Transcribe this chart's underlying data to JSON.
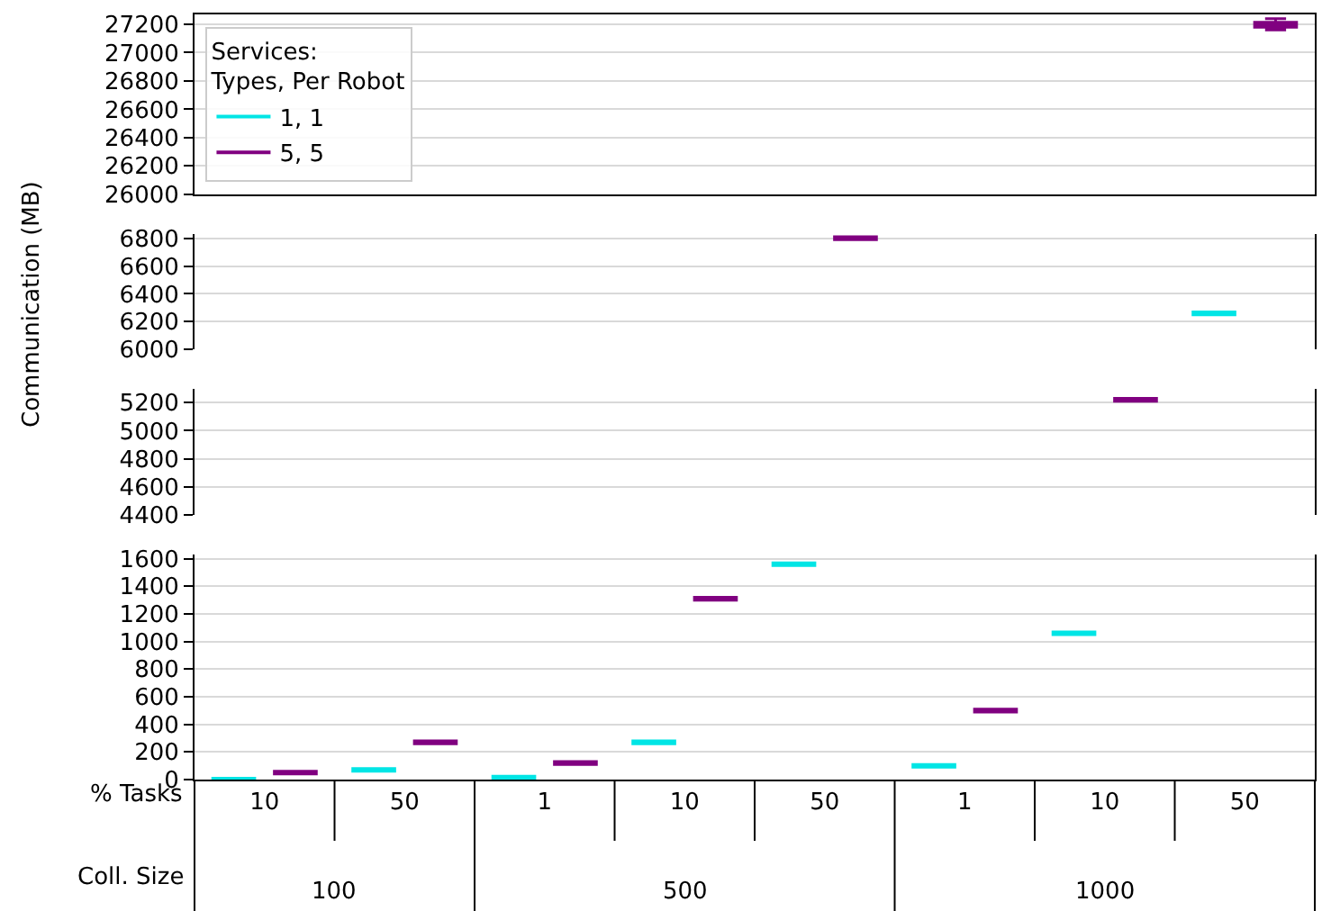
{
  "chart_data": [
    {
      "type": "box",
      "legend_title": "Services:\nTypes, Per Robot",
      "legend": "left",
      "grid": "y",
      "tick_labels": "y",
      "ylim": [
        26000,
        27270
      ],
      "yticks": [
        26000,
        26200,
        26400,
        26600,
        26800,
        27000,
        27200
      ],
      "categories": [
        "10",
        "50",
        "1",
        "10",
        "50",
        "1",
        "10",
        "50"
      ],
      "series": [
        {
          "name": "1, 1",
          "color": "#00e5e5",
          "boxes": [
            null,
            null,
            null,
            null,
            null,
            null,
            null,
            null
          ]
        },
        {
          "name": "5, 5",
          "color": "#800080",
          "boxes": [
            null,
            null,
            null,
            null,
            null,
            null,
            null,
            {
              "low": 27160,
              "q1": 27180,
              "median": 27200,
              "q3": 27215,
              "high": 27240
            }
          ]
        }
      ]
    },
    {
      "type": "box",
      "ylabel": "Communication (MB)",
      "grid": "y",
      "tick_labels": "y",
      "ylim": [
        6000,
        6830
      ],
      "yticks": [
        6000,
        6200,
        6400,
        6600,
        6800
      ],
      "categories": [
        "10",
        "50",
        "1",
        "10",
        "50",
        "1",
        "10",
        "50"
      ],
      "series": [
        {
          "color": "#00e5e5",
          "boxes": [
            null,
            null,
            null,
            null,
            null,
            null,
            null,
            {
              "low": 6250,
              "q1": 6250,
              "median": 6260,
              "q3": 6270,
              "high": 6270
            }
          ]
        },
        {
          "color": "#800080",
          "boxes": [
            null,
            null,
            null,
            null,
            {
              "low": 6790,
              "q1": 6790,
              "median": 6800,
              "q3": 6810,
              "high": 6810
            },
            null,
            null,
            null
          ]
        }
      ]
    },
    {
      "type": "box",
      "grid": "y",
      "tick_labels": "y",
      "ylim": [
        4400,
        5300
      ],
      "yticks": [
        4400,
        4600,
        4800,
        5000,
        5200
      ],
      "categories": [
        "10",
        "50",
        "1",
        "10",
        "50",
        "1",
        "10",
        "50"
      ],
      "series": [
        {
          "color": "#00e5e5",
          "boxes": [
            null,
            null,
            null,
            null,
            null,
            null,
            null,
            null
          ]
        },
        {
          "color": "#800080",
          "boxes": [
            null,
            null,
            null,
            null,
            null,
            null,
            {
              "low": 5210,
              "q1": 5210,
              "median": 5220,
              "q3": 5230,
              "high": 5230
            },
            null
          ]
        }
      ]
    },
    {
      "type": "box",
      "grid": "y",
      "ylim": [
        0,
        1630
      ],
      "yticks": [
        0,
        200,
        400,
        600,
        800,
        1000,
        1200,
        1400,
        1600
      ],
      "categories": [
        "10",
        "50",
        "1",
        "10",
        "50",
        "1",
        "10",
        "50"
      ],
      "annotations": [
        "% Tasks",
        "Coll. Size",
        "100",
        "500",
        "1000"
      ],
      "series": [
        {
          "color": "#00e5e5",
          "boxes": [
            {
              "low": 0,
              "q1": 0,
              "median": 0,
              "q3": 10,
              "high": 10
            },
            {
              "low": 60,
              "q1": 60,
              "median": 70,
              "q3": 80,
              "high": 80
            },
            {
              "low": 5,
              "q1": 5,
              "median": 15,
              "q3": 25,
              "high": 25
            },
            {
              "low": 260,
              "q1": 260,
              "median": 270,
              "q3": 280,
              "high": 280
            },
            {
              "low": 1550,
              "q1": 1550,
              "median": 1560,
              "q3": 1570,
              "high": 1570
            },
            {
              "low": 90,
              "q1": 90,
              "median": 100,
              "q3": 110,
              "high": 110
            },
            {
              "low": 1050,
              "q1": 1050,
              "median": 1060,
              "q3": 1070,
              "high": 1070
            },
            null
          ]
        },
        {
          "color": "#800080",
          "boxes": [
            {
              "low": 40,
              "q1": 40,
              "median": 50,
              "q3": 60,
              "high": 60
            },
            {
              "low": 260,
              "q1": 260,
              "median": 270,
              "q3": 280,
              "high": 280
            },
            {
              "low": 110,
              "q1": 110,
              "median": 120,
              "q3": 130,
              "high": 130
            },
            {
              "low": 1300,
              "q1": 1300,
              "median": 1310,
              "q3": 1320,
              "high": 1320
            },
            null,
            {
              "low": 490,
              "q1": 490,
              "median": 500,
              "q3": 510,
              "high": 510
            },
            null,
            null
          ]
        }
      ]
    }
  ]
}
